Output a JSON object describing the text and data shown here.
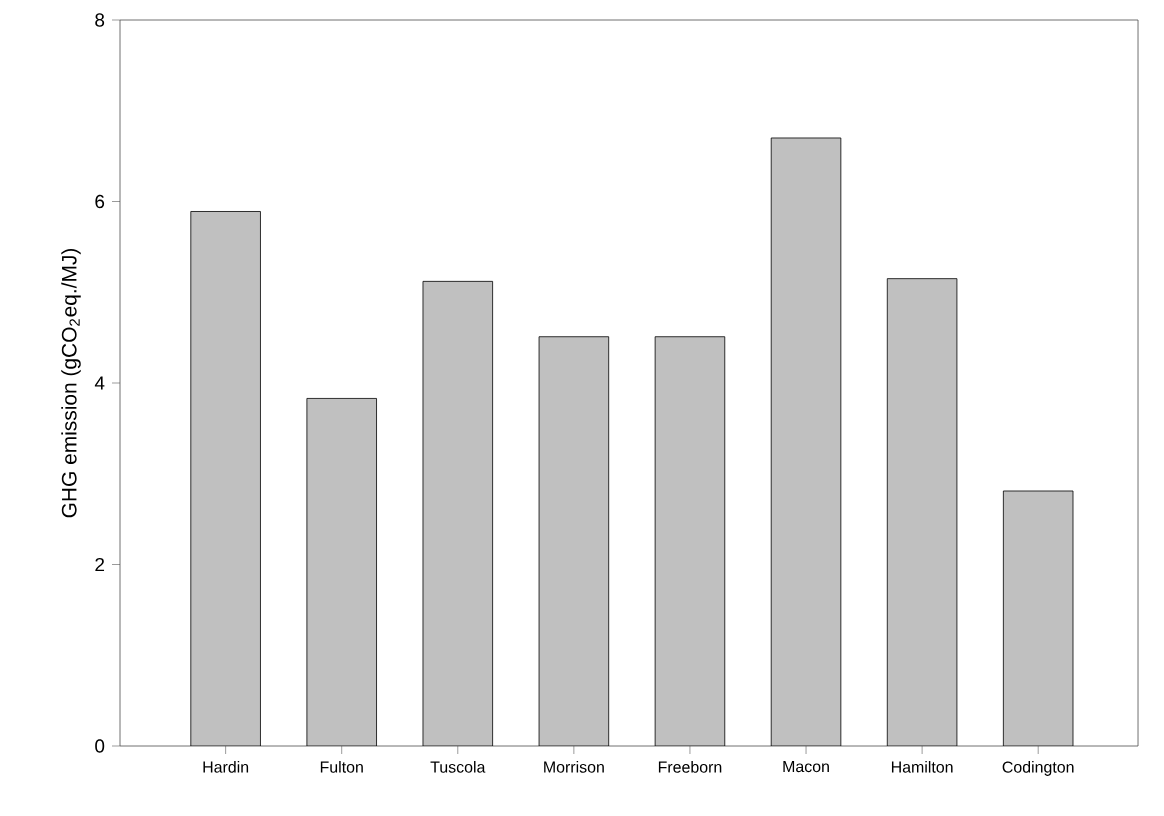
{
  "chart_data": {
    "type": "bar",
    "ylabel": "GHG emission (gCO$_{2}$eq./MJ)",
    "categories": [
      "Hardin",
      "Fulton",
      "Tuscola",
      "Morrison",
      "Freeborn",
      "Macon",
      "Hamilton",
      "Codington"
    ],
    "values": [
      5.89,
      3.83,
      5.12,
      4.51,
      4.51,
      6.7,
      5.15,
      2.81
    ],
    "color": "#c0c0c0",
    "ylim": [
      0,
      8
    ],
    "yticks": [
      0,
      2,
      4,
      6,
      8
    ],
    "grid": false
  }
}
